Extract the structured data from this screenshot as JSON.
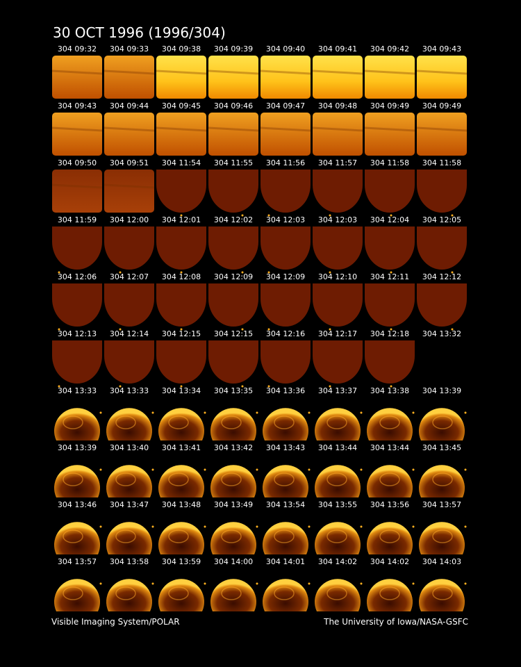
{
  "title": "30 OCT 1996  (1996/304)",
  "frames": [
    [
      "304 09:32",
      "304 09:33",
      "304 09:38",
      "304 09:39",
      "304 09:40",
      "304 09:41",
      "304 09:42",
      "304 09:43"
    ],
    [
      "304 09:43",
      "304 09:44",
      "304 09:45",
      "304 09:46",
      "304 09:47",
      "304 09:48",
      "304 09:49",
      "304 09:49"
    ],
    [
      "304 09:50",
      "304 09:51",
      "304 11:54",
      "304 11:55",
      "304 11:56",
      "304 11:57",
      "304 11:58",
      "304 11:58"
    ],
    [
      "304 11:59",
      "304 12:00",
      "304 12:01",
      "304 12:02",
      "304 12:03",
      "304 12:03",
      "304 12:04",
      "304 12:05"
    ],
    [
      "304 12:06",
      "304 12:07",
      "304 12:08",
      "304 12:09",
      "304 12:09",
      "304 12:10",
      "304 12:11",
      "304 12:12"
    ],
    [
      "304 12:13",
      "304 12:14",
      "304 12:15",
      "304 12:15",
      "304 12:16",
      "304 12:17",
      "304 12:18",
      "304 13:32"
    ],
    [
      "304 13:33",
      "304 13:33",
      "304 13:34",
      "304 13:35",
      "304 13:36",
      "304 13:37",
      "304 13:38",
      "304 13:39"
    ],
    [
      "304 13:39",
      "304 13:40",
      "304 13:41",
      "304 13:42",
      "304 13:43",
      "304 13:44",
      "304 13:44",
      "304 13:45"
    ],
    [
      "304 13:46",
      "304 13:47",
      "304 13:48",
      "304 13:49",
      "304 13:54",
      "304 13:55",
      "304 13:56",
      "304 13:57"
    ],
    [
      "304 13:57",
      "304 13:58",
      "304 13:59",
      "304 14:00",
      "304 14:01",
      "304 14:02",
      "304 14:02",
      "304 14:03"
    ]
  ],
  "footer": {
    "left": "Visible Imaging System/POLAR",
    "right": "The University of Iowa/NASA-GSFC"
  }
}
